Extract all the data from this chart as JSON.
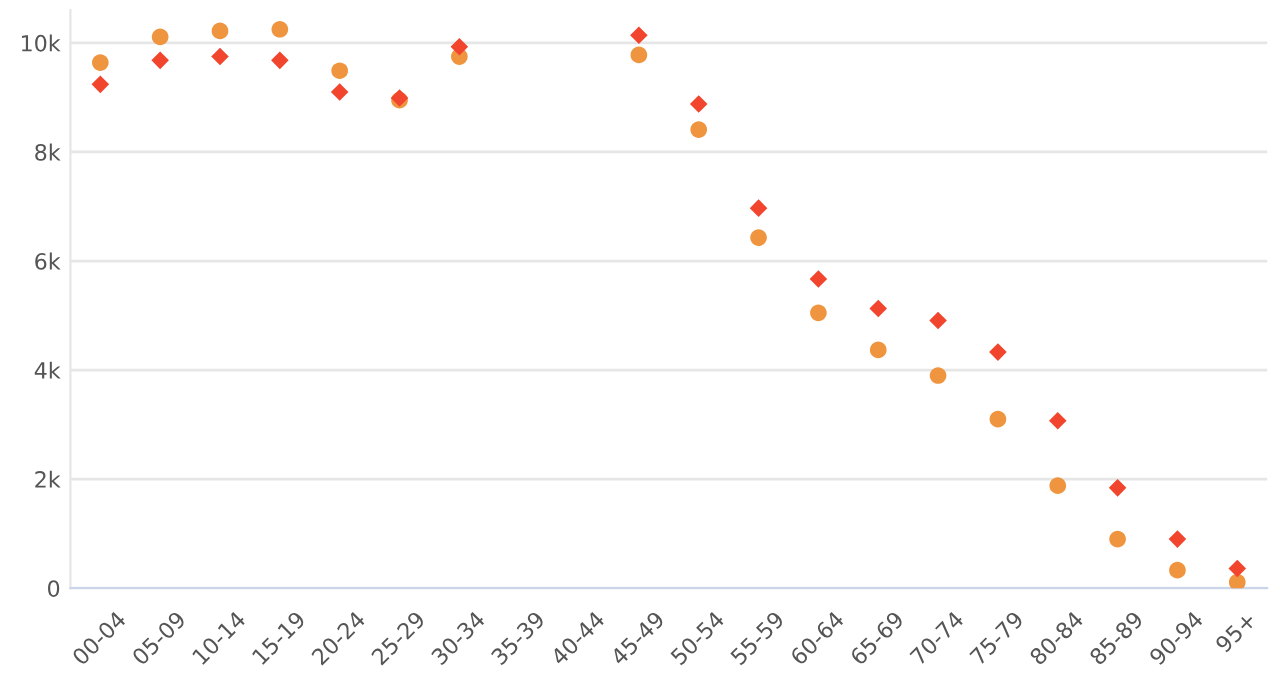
{
  "chart_data": {
    "type": "scatter",
    "categories": [
      "00-04",
      "05-09",
      "10-14",
      "15-19",
      "20-24",
      "25-29",
      "30-34",
      "35-39",
      "40-44",
      "45-49",
      "50-54",
      "55-59",
      "60-64",
      "65-69",
      "70-74",
      "75-79",
      "80-84",
      "85-89",
      "90-94",
      "95+"
    ],
    "series": [
      {
        "color": "#f0953f",
        "marker": "circle",
        "values": [
          9640,
          10110,
          10220,
          10250,
          9490,
          8950,
          9750,
          null,
          null,
          9780,
          8410,
          6430,
          5050,
          4370,
          3900,
          3100,
          1880,
          900,
          330,
          110
        ]
      },
      {
        "color": "#f2452e",
        "marker": "diamond",
        "values": [
          9240,
          9680,
          9750,
          9680,
          9100,
          8990,
          9930,
          null,
          null,
          10140,
          8880,
          6970,
          5670,
          5130,
          4910,
          4330,
          3070,
          1840,
          900,
          360
        ]
      }
    ],
    "ylim": [
      0,
      10600
    ],
    "yticks": [
      {
        "value": 0,
        "label": "0"
      },
      {
        "value": 2000,
        "label": "2k"
      },
      {
        "value": 4000,
        "label": "4k"
      },
      {
        "value": 6000,
        "label": "6k"
      },
      {
        "value": 8000,
        "label": "8k"
      },
      {
        "value": 10000,
        "label": "10k"
      }
    ],
    "grid": "y"
  }
}
